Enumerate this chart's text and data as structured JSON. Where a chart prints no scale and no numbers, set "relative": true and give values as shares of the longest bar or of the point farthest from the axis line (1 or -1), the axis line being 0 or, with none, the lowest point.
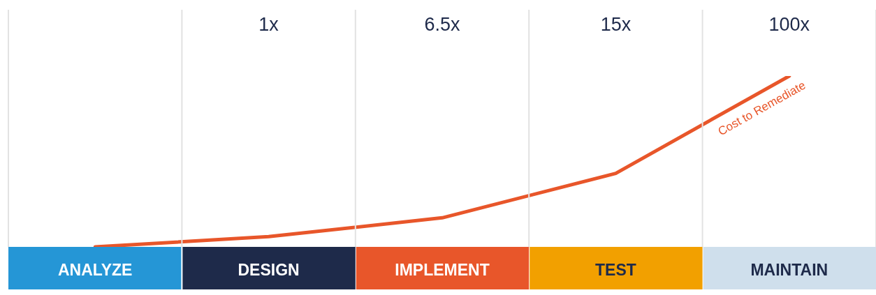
{
  "chart_data": {
    "type": "line",
    "relative": true,
    "categories": [
      "ANALYZE",
      "DESIGN",
      "IMPLEMENT",
      "TEST",
      "MAINTAIN"
    ],
    "colors": [
      "#2596d6",
      "#1e2a4a",
      "#e8562a",
      "#f2a000",
      "#cfdfec"
    ],
    "series": [
      {
        "name": "Cost to Remediate",
        "color": "#e8562a",
        "values": [
          0,
          0.06,
          0.17,
          0.43,
          1
        ]
      }
    ],
    "annotations": [
      "1x",
      "6.5x",
      "15x",
      "100x"
    ],
    "grid": "x",
    "legend": false,
    "marker": "none",
    "line_style": "solid"
  }
}
